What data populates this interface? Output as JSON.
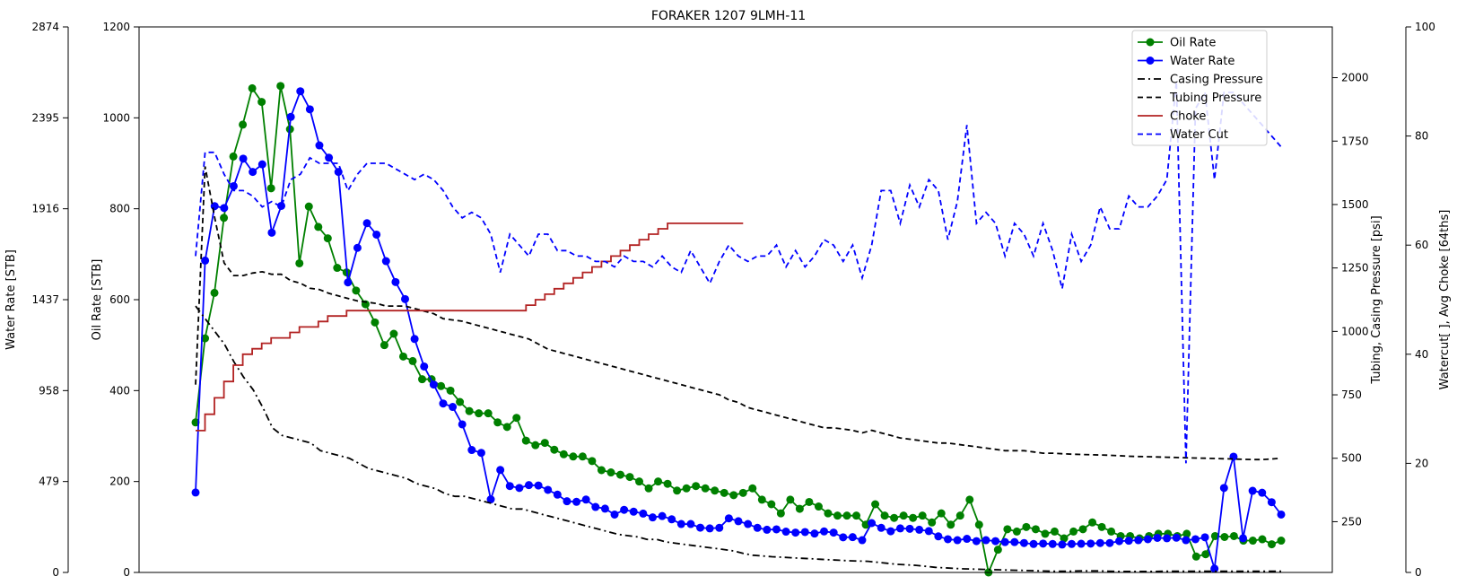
{
  "chart_data": {
    "type": "line",
    "title": "FORAKER 1207 9LMH-11",
    "axes": {
      "oil": {
        "label": "Oil Rate [STB]",
        "range": [
          0,
          1200
        ],
        "ticks": [
          0,
          200,
          400,
          600,
          800,
          1000,
          1200
        ]
      },
      "water": {
        "label": "Water Rate [STB]",
        "range": [
          0,
          2874
        ],
        "ticks": [
          0,
          479,
          958,
          1437,
          1916,
          2395,
          2874
        ]
      },
      "pressure": {
        "label": "Tubing, Casing Pressure [psi]",
        "range": [
          50,
          2200
        ],
        "ticks": [
          250,
          500,
          750,
          1000,
          1250,
          1500,
          1750,
          2000
        ]
      },
      "watercut": {
        "label": "Watercut[ ], Avg Choke [64ths]",
        "range": [
          0,
          100
        ],
        "ticks": [
          0,
          20,
          40,
          60,
          80,
          100
        ]
      }
    },
    "legend": {
      "position": "top-right",
      "entries": [
        "Oil Rate",
        "Water Rate",
        "Casing Pressure",
        "Tubing Pressure",
        "Choke",
        "Water Cut"
      ]
    },
    "grid": false,
    "series": [
      {
        "name": "Oil Rate",
        "axis": "oil",
        "color": "#008000",
        "style": "solid-markers",
        "values": [
          330,
          515,
          615,
          780,
          915,
          985,
          1065,
          1035,
          845,
          1070,
          975,
          680,
          805,
          760,
          735,
          670,
          660,
          620,
          590,
          550,
          500,
          525,
          475,
          465,
          425,
          425,
          410,
          400,
          375,
          355,
          350,
          350,
          330,
          320,
          340,
          290,
          280,
          285,
          270,
          260,
          255,
          255,
          245,
          225,
          220,
          215,
          210,
          200,
          185,
          200,
          195,
          180,
          185,
          190,
          185,
          180,
          175,
          170,
          175,
          185,
          160,
          150,
          130,
          160,
          140,
          155,
          145,
          130,
          125,
          125,
          125,
          105,
          150,
          125,
          120,
          125,
          120,
          125,
          110,
          130,
          105,
          125,
          160,
          105,
          0,
          50,
          95,
          90,
          100,
          95,
          85,
          90,
          75,
          90,
          95,
          110,
          100,
          90,
          80,
          80,
          75,
          80,
          85,
          85,
          80,
          85,
          35,
          40,
          80,
          78,
          80,
          70,
          70,
          73,
          62,
          70
        ]
      },
      {
        "name": "Water Rate",
        "axis": "water",
        "color": "#0000ff",
        "style": "solid-markers",
        "values": [
          421,
          1643,
          1930,
          1920,
          2035,
          2180,
          2110,
          2150,
          1790,
          1931,
          2400,
          2535,
          2440,
          2250,
          2185,
          2110,
          1528,
          1710,
          1840,
          1780,
          1640,
          1530,
          1440,
          1230,
          1085,
          990,
          890,
          872,
          780,
          645,
          630,
          385,
          540,
          455,
          445,
          460,
          458,
          435,
          410,
          375,
          372,
          384,
          345,
          336,
          305,
          330,
          320,
          310,
          290,
          297,
          280,
          255,
          255,
          236,
          232,
          235,
          285,
          270,
          255,
          235,
          225,
          227,
          215,
          210,
          213,
          205,
          216,
          210,
          185,
          186,
          170,
          260,
          235,
          217,
          232,
          230,
          225,
          218,
          190,
          175,
          170,
          177,
          165,
          170,
          165,
          160,
          160,
          155,
          150,
          152,
          150,
          147,
          150,
          151,
          152,
          155,
          155,
          165,
          167,
          170,
          175,
          182,
          180,
          183,
          170,
          175,
          185,
          20,
          445,
          610,
          180,
          430,
          420,
          370,
          305
        ]
      },
      {
        "name": "Casing Pressure",
        "axis": "pressure",
        "color": "#000000",
        "style": "dashdot",
        "values": [
          1100,
          1050,
          1000,
          950,
          880,
          820,
          770,
          700,
          620,
          590,
          580,
          570,
          560,
          530,
          520,
          510,
          500,
          480,
          460,
          450,
          440,
          430,
          420,
          400,
          390,
          380,
          360,
          350,
          350,
          340,
          330,
          320,
          310,
          300,
          300,
          290,
          280,
          270,
          260,
          250,
          240,
          230,
          220,
          210,
          200,
          195,
          190,
          180,
          180,
          170,
          165,
          160,
          155,
          150,
          145,
          140,
          135,
          125,
          118,
          115,
          112,
          110,
          108,
          106,
          104,
          102,
          100,
          98,
          96,
          95,
          94,
          90,
          86,
          82,
          80,
          78,
          74,
          70,
          68,
          66,
          64,
          63,
          62,
          61,
          60,
          59,
          58,
          57,
          56,
          55,
          55,
          55,
          56,
          56,
          56,
          55,
          54,
          54,
          54,
          54,
          54,
          55,
          55,
          55,
          55,
          55,
          55,
          55,
          55,
          55,
          55,
          55,
          55,
          55
        ]
      },
      {
        "name": "Tubing Pressure",
        "axis": "pressure",
        "color": "#000000",
        "style": "dashed",
        "values": [
          790,
          1650,
          1450,
          1270,
          1220,
          1220,
          1230,
          1235,
          1225,
          1225,
          1200,
          1190,
          1170,
          1165,
          1150,
          1140,
          1130,
          1120,
          1115,
          1110,
          1100,
          1100,
          1100,
          1090,
          1080,
          1070,
          1050,
          1045,
          1040,
          1030,
          1020,
          1010,
          1000,
          990,
          980,
          970,
          950,
          930,
          920,
          910,
          900,
          890,
          880,
          870,
          860,
          850,
          840,
          830,
          820,
          810,
          800,
          790,
          780,
          770,
          760,
          750,
          730,
          720,
          700,
          690,
          680,
          670,
          660,
          650,
          640,
          630,
          620,
          620,
          615,
          610,
          600,
          610,
          600,
          590,
          580,
          575,
          570,
          565,
          560,
          560,
          555,
          550,
          545,
          540,
          535,
          530,
          530,
          530,
          525,
          520,
          520,
          518,
          516,
          515,
          514,
          513,
          512,
          510,
          508,
          507,
          506,
          505,
          504,
          503,
          502,
          501,
          500,
          499,
          498,
          497,
          496,
          495,
          495,
          497,
          500
        ]
      },
      {
        "name": "Choke",
        "axis": "watercut",
        "color": "#b22222",
        "style": "steps-post",
        "x": [
          0,
          1,
          2,
          3,
          4,
          5,
          6,
          7,
          8,
          9,
          10,
          11,
          12,
          13,
          14,
          15,
          16,
          17,
          18,
          19,
          20,
          21,
          22,
          23,
          24,
          25,
          26,
          27,
          28,
          29,
          30,
          31,
          32,
          33,
          34,
          35,
          36,
          37,
          38,
          39,
          40,
          41,
          42,
          43,
          44,
          45,
          46,
          47,
          48,
          49,
          50,
          51,
          52,
          53,
          54
        ],
        "values": [
          26,
          29,
          32,
          35,
          38,
          40,
          41,
          42,
          43,
          43,
          44,
          45,
          45,
          46,
          47,
          47,
          48,
          48,
          48,
          48,
          48,
          48,
          48,
          48,
          48,
          48,
          48,
          48,
          48,
          48,
          48,
          48,
          48,
          48,
          48,
          49,
          50,
          51,
          52,
          53,
          54,
          55,
          56,
          57,
          58,
          59,
          60,
          61,
          62,
          63,
          64,
          64,
          64,
          64,
          64
        ]
      },
      {
        "name": "Water Cut",
        "axis": "watercut",
        "color": "#0000ff",
        "style": "dashed",
        "values": [
          58,
          77,
          77,
          73,
          70,
          70,
          69,
          67,
          68,
          67,
          72,
          73,
          76,
          75,
          75,
          75,
          70,
          73,
          75,
          75,
          75,
          74,
          73,
          72,
          73,
          72,
          70,
          67,
          65,
          66,
          65,
          62,
          55,
          62,
          60,
          58,
          62,
          62,
          59,
          59,
          58,
          58,
          57,
          57,
          56,
          58,
          57,
          57,
          56,
          58,
          56,
          55,
          59,
          56,
          53,
          57,
          60,
          58,
          57,
          58,
          58,
          60,
          56,
          59,
          56,
          58,
          61,
          60,
          57,
          60,
          54,
          60,
          70,
          70,
          64,
          71,
          67,
          72,
          70,
          61,
          68,
          82,
          64,
          66,
          64,
          58,
          64,
          62,
          58,
          64,
          59,
          52,
          62,
          57,
          60,
          67,
          63,
          63,
          69,
          67,
          67,
          69,
          72,
          90,
          20,
          85,
          88,
          72,
          88,
          88,
          86,
          84,
          82,
          80,
          78
        ]
      }
    ]
  }
}
